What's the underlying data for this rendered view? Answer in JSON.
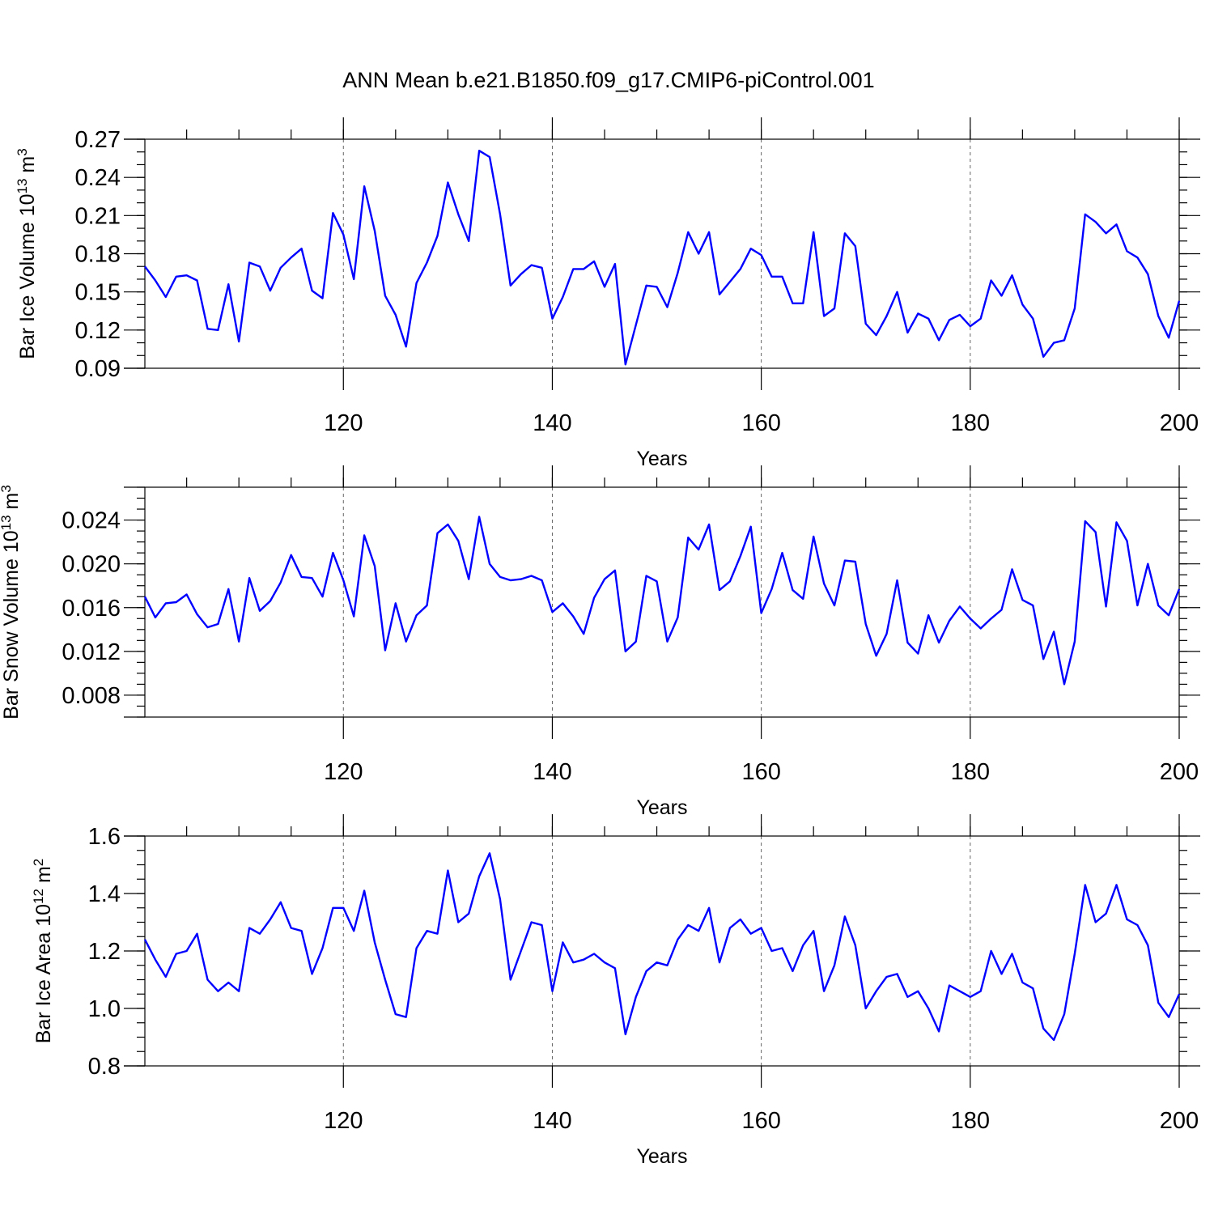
{
  "title": "ANN Mean b.e21.B1850.f09_g17.CMIP6-piControl.001",
  "chart_data": [
    {
      "type": "line",
      "name": "ice-volume",
      "ylabel": "Bar Ice Volume 10",
      "ylabel_exp": "13",
      "ylabel_unit": " m",
      "ylabel_unit_exp": "3",
      "xlabel": "Years",
      "xlim": [
        101,
        200
      ],
      "ylim": [
        0.09,
        0.27
      ],
      "x_ticks": [
        120,
        140,
        160,
        180,
        200
      ],
      "x_tick_labels": [
        "120",
        "140",
        "160",
        "180",
        "200"
      ],
      "y_ticks": [
        0.09,
        0.12,
        0.15,
        0.18,
        0.21,
        0.24,
        0.27
      ],
      "y_tick_labels": [
        "0.09",
        "0.12",
        "0.15",
        "0.18",
        "0.21",
        "0.24",
        "0.27"
      ],
      "y_minor_step": 0.01,
      "grid_x": [
        120,
        140,
        160,
        180
      ],
      "color": "#0000ff",
      "x_start": 101,
      "values": [
        0.17,
        0.159,
        0.146,
        0.162,
        0.163,
        0.159,
        0.121,
        0.12,
        0.156,
        0.111,
        0.173,
        0.17,
        0.151,
        0.169,
        0.177,
        0.184,
        0.151,
        0.145,
        0.212,
        0.195,
        0.16,
        0.233,
        0.198,
        0.147,
        0.132,
        0.107,
        0.157,
        0.173,
        0.194,
        0.236,
        0.211,
        0.19,
        0.261,
        0.256,
        0.211,
        0.155,
        0.164,
        0.171,
        0.169,
        0.129,
        0.146,
        0.168,
        0.168,
        0.174,
        0.154,
        0.172,
        0.093,
        0.124,
        0.155,
        0.154,
        0.138,
        0.165,
        0.197,
        0.18,
        0.197,
        0.148,
        0.158,
        0.168,
        0.184,
        0.179,
        0.162,
        0.162,
        0.141,
        0.141,
        0.197,
        0.131,
        0.137,
        0.196,
        0.186,
        0.125,
        0.116,
        0.131,
        0.15,
        0.118,
        0.133,
        0.129,
        0.112,
        0.128,
        0.132,
        0.123,
        0.129,
        0.159,
        0.147,
        0.163,
        0.14,
        0.129,
        0.099,
        0.11,
        0.112,
        0.137,
        0.211,
        0.205,
        0.196,
        0.203,
        0.182,
        0.177,
        0.164,
        0.131,
        0.114,
        0.143
      ]
    },
    {
      "type": "line",
      "name": "snow-volume",
      "ylabel": "Bar Snow Volume 10",
      "ylabel_exp": "13",
      "ylabel_unit": " m",
      "ylabel_unit_exp": "3",
      "xlabel": "Years",
      "xlim": [
        101,
        200
      ],
      "ylim": [
        0.006,
        0.027
      ],
      "x_ticks": [
        120,
        140,
        160,
        180,
        200
      ],
      "x_tick_labels": [
        "120",
        "140",
        "160",
        "180",
        "200"
      ],
      "y_ticks": [
        0.008,
        0.012,
        0.016,
        0.02,
        0.024
      ],
      "y_tick_labels": [
        "0.008",
        "0.012",
        "0.016",
        "0.020",
        "0.024"
      ],
      "y_minor_step": 0.001,
      "grid_x": [
        120,
        140,
        160,
        180
      ],
      "color": "#0000ff",
      "x_start": 101,
      "values": [
        0.017,
        0.0151,
        0.0164,
        0.0165,
        0.0172,
        0.0154,
        0.0142,
        0.0145,
        0.0177,
        0.0129,
        0.0187,
        0.0157,
        0.0166,
        0.0183,
        0.0208,
        0.0188,
        0.0187,
        0.017,
        0.021,
        0.0185,
        0.0152,
        0.0226,
        0.0198,
        0.0121,
        0.0164,
        0.0129,
        0.0153,
        0.0162,
        0.0228,
        0.0236,
        0.0221,
        0.0186,
        0.0243,
        0.02,
        0.0188,
        0.0185,
        0.0186,
        0.0189,
        0.0185,
        0.0156,
        0.0164,
        0.0152,
        0.0136,
        0.0169,
        0.0186,
        0.0194,
        0.012,
        0.0129,
        0.0189,
        0.0184,
        0.0129,
        0.0151,
        0.0224,
        0.0213,
        0.0236,
        0.0176,
        0.0184,
        0.0207,
        0.0234,
        0.0155,
        0.0177,
        0.021,
        0.0176,
        0.0168,
        0.0225,
        0.0182,
        0.0162,
        0.0203,
        0.0202,
        0.0145,
        0.0116,
        0.0136,
        0.0185,
        0.0128,
        0.0118,
        0.0153,
        0.0128,
        0.0148,
        0.0161,
        0.015,
        0.0141,
        0.015,
        0.0158,
        0.0195,
        0.0167,
        0.0162,
        0.0113,
        0.0138,
        0.009,
        0.0129,
        0.0239,
        0.0229,
        0.0161,
        0.0238,
        0.0221,
        0.0162,
        0.02,
        0.0162,
        0.0153,
        0.0177
      ]
    },
    {
      "type": "line",
      "name": "ice-area",
      "ylabel": "Bar Ice Area 10",
      "ylabel_exp": "12",
      "ylabel_unit": " m",
      "ylabel_unit_exp": "2",
      "xlabel": "Years",
      "xlim": [
        101,
        200
      ],
      "ylim": [
        0.8,
        1.6
      ],
      "x_ticks": [
        120,
        140,
        160,
        180,
        200
      ],
      "x_tick_labels": [
        "120",
        "140",
        "160",
        "180",
        "200"
      ],
      "y_ticks": [
        0.8,
        1.0,
        1.2,
        1.4,
        1.6
      ],
      "y_tick_labels": [
        "0.8",
        "1.0",
        "1.2",
        "1.4",
        "1.6"
      ],
      "y_minor_step": 0.05,
      "grid_x": [
        120,
        140,
        160,
        180
      ],
      "color": "#0000ff",
      "x_start": 101,
      "values": [
        1.24,
        1.17,
        1.11,
        1.19,
        1.2,
        1.26,
        1.1,
        1.06,
        1.09,
        1.06,
        1.28,
        1.26,
        1.31,
        1.37,
        1.28,
        1.27,
        1.12,
        1.21,
        1.35,
        1.35,
        1.27,
        1.41,
        1.23,
        1.1,
        0.98,
        0.97,
        1.21,
        1.27,
        1.26,
        1.48,
        1.3,
        1.33,
        1.46,
        1.54,
        1.38,
        1.1,
        1.2,
        1.3,
        1.29,
        1.06,
        1.23,
        1.16,
        1.17,
        1.19,
        1.16,
        1.14,
        0.91,
        1.04,
        1.13,
        1.16,
        1.15,
        1.24,
        1.29,
        1.27,
        1.35,
        1.16,
        1.28,
        1.31,
        1.26,
        1.28,
        1.2,
        1.21,
        1.13,
        1.22,
        1.27,
        1.06,
        1.15,
        1.32,
        1.22,
        1.0,
        1.06,
        1.11,
        1.12,
        1.04,
        1.06,
        1.0,
        0.92,
        1.08,
        1.06,
        1.04,
        1.06,
        1.2,
        1.12,
        1.19,
        1.09,
        1.07,
        0.93,
        0.89,
        0.98,
        1.19,
        1.43,
        1.3,
        1.33,
        1.43,
        1.31,
        1.29,
        1.22,
        1.02,
        0.97,
        1.05
      ]
    }
  ]
}
